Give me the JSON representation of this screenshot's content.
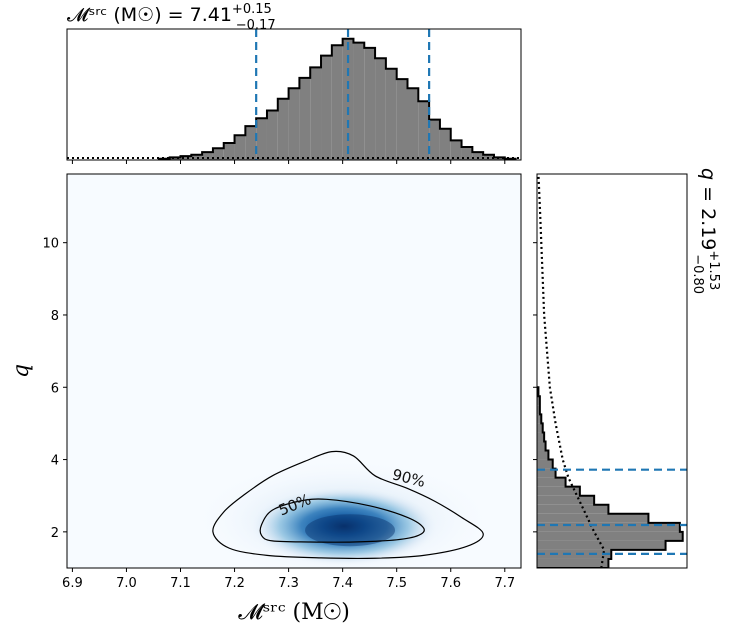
{
  "chart_data": [
    {
      "type": "heatmap",
      "panel": "joint-density",
      "xlabel": "𝓜ˢʳᶜ (M☉)",
      "ylabel": "q",
      "xlim": [
        6.89,
        7.73
      ],
      "ylim": [
        1.0,
        11.9
      ],
      "xticks": [
        "6.9",
        "7.0",
        "7.1",
        "7.2",
        "7.3",
        "7.4",
        "7.5",
        "7.6",
        "7.7"
      ],
      "xtick_values": [
        6.9,
        7.0,
        7.1,
        7.2,
        7.3,
        7.4,
        7.5,
        7.6,
        7.7
      ],
      "yticks": [
        "2",
        "4",
        "6",
        "8",
        "10"
      ],
      "ytick_values": [
        2,
        4,
        6,
        8,
        10
      ],
      "density_peak": {
        "x": 7.41,
        "y": 2.1
      },
      "colormap": [
        "#f7fbff",
        "#c6dbef",
        "#6baed6",
        "#2171b5",
        "#08306b"
      ],
      "contours": [
        {
          "label": "50%",
          "points": [
            [
              7.27,
              1.75
            ],
            [
              7.34,
              1.72
            ],
            [
              7.42,
              1.72
            ],
            [
              7.5,
              1.78
            ],
            [
              7.54,
              1.9
            ],
            [
              7.55,
              2.1
            ],
            [
              7.52,
              2.4
            ],
            [
              7.45,
              2.72
            ],
            [
              7.37,
              2.9
            ],
            [
              7.32,
              2.85
            ],
            [
              7.27,
              2.6
            ],
            [
              7.25,
              2.2
            ],
            [
              7.25,
              1.9
            ]
          ]
        },
        {
          "label": "90%",
          "points": [
            [
              7.19,
              1.55
            ],
            [
              7.26,
              1.35
            ],
            [
              7.36,
              1.28
            ],
            [
              7.46,
              1.27
            ],
            [
              7.55,
              1.35
            ],
            [
              7.63,
              1.6
            ],
            [
              7.66,
              1.95
            ],
            [
              7.62,
              2.4
            ],
            [
              7.57,
              2.85
            ],
            [
              7.52,
              3.2
            ],
            [
              7.46,
              3.55
            ],
            [
              7.42,
              4.1
            ],
            [
              7.38,
              4.22
            ],
            [
              7.33,
              3.95
            ],
            [
              7.27,
              3.55
            ],
            [
              7.22,
              3.05
            ],
            [
              7.18,
              2.55
            ],
            [
              7.16,
              2.0
            ]
          ]
        }
      ]
    },
    {
      "type": "bar",
      "panel": "chirp-mass-marginal",
      "title_prefix": "𝓜ˢʳᶜ (M☉) = ",
      "title_value": "7.41",
      "title_plus": "+0.15",
      "title_minus": "−0.17",
      "xlim": [
        6.89,
        7.73
      ],
      "bin_edges": [
        7.06,
        7.08,
        7.1,
        7.12,
        7.14,
        7.16,
        7.18,
        7.2,
        7.22,
        7.24,
        7.26,
        7.28,
        7.3,
        7.32,
        7.34,
        7.36,
        7.38,
        7.4,
        7.42,
        7.44,
        7.46,
        7.48,
        7.5,
        7.52,
        7.54,
        7.56,
        7.58,
        7.6,
        7.62,
        7.64,
        7.66,
        7.68,
        7.7,
        7.72
      ],
      "values": [
        1,
        2,
        3,
        4,
        6,
        9,
        13,
        19,
        26,
        32,
        38,
        47,
        55,
        63,
        71,
        80,
        88,
        93,
        90,
        86,
        78,
        70,
        62,
        55,
        45,
        31,
        24,
        15,
        10,
        6,
        4,
        2,
        1
      ],
      "quantiles": [
        7.24,
        7.41,
        7.56
      ],
      "prior_level": 1.5,
      "color_fill": "#808080",
      "color_quantile": "#1f77b4"
    },
    {
      "type": "bar",
      "panel": "q-marginal",
      "orientation": "horizontal",
      "title_prefix": "q = ",
      "title_value": "2.19",
      "title_plus": "+1.53",
      "title_minus": "−0.80",
      "ylim": [
        1.0,
        11.9
      ],
      "bin_edges": [
        1.0,
        1.25,
        1.5,
        1.75,
        2.0,
        2.25,
        2.5,
        2.75,
        3.0,
        3.25,
        3.5,
        3.75,
        4.0,
        4.25,
        4.5,
        4.75,
        5.0,
        5.25,
        5.5,
        5.75,
        6.0
      ],
      "values": [
        50,
        52,
        90,
        102,
        100,
        78,
        50,
        40,
        30,
        20,
        13,
        11,
        8,
        6,
        5,
        4,
        3,
        2,
        2,
        1
      ],
      "prior_density": [
        [
          1.0,
          45
        ],
        [
          1.5,
          47
        ],
        [
          2.0,
          40
        ],
        [
          2.5,
          34
        ],
        [
          3.0,
          28
        ],
        [
          3.5,
          22
        ],
        [
          4.0,
          18
        ],
        [
          5.0,
          13
        ],
        [
          6.0,
          9
        ],
        [
          7.0,
          7
        ],
        [
          8.0,
          5
        ],
        [
          9.0,
          4
        ],
        [
          10.0,
          3
        ],
        [
          11.0,
          2
        ],
        [
          11.9,
          1
        ]
      ],
      "quantiles": [
        1.39,
        2.19,
        3.72
      ],
      "xmax": 105,
      "color_fill": "#808080",
      "color_quantile": "#1f77b4"
    }
  ]
}
